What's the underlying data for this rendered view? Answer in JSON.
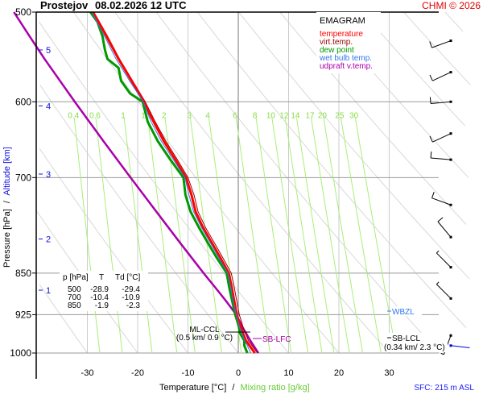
{
  "header": {
    "station": "Prostejov",
    "datetime": "08.02.2026 12 UTC",
    "copyright": "CHMI © 2026"
  },
  "chart_data": {
    "type": "line",
    "title": "EMAGRAM",
    "xlabel": "Temperature [°C]",
    "xlabel_sep": "/",
    "xlabel2": "Mixing ratio [g/kg]",
    "ylabel": "Pressure [hPa]",
    "ylabel_sep": "/",
    "ylabel2": "Altitude [km]",
    "xlim": [
      -38,
      42
    ],
    "ylim": [
      1000,
      500
    ],
    "x_ticks": [
      -30,
      -20,
      -10,
      0,
      10,
      20,
      30
    ],
    "pressure_ticks": [
      500,
      600,
      700,
      850,
      925,
      1000
    ],
    "altitude_ticks": [
      {
        "km": 1,
        "p": 880
      },
      {
        "km": 2,
        "p": 793
      },
      {
        "km": 3,
        "p": 695
      },
      {
        "km": 4,
        "p": 605
      },
      {
        "km": 5,
        "p": 540
      }
    ],
    "mixing_ratio_labels": [
      "0.4",
      "0.6",
      "1",
      "1.5",
      "2",
      "3",
      "4",
      "6",
      "8",
      "10",
      "12",
      "14",
      "17",
      "20",
      "25",
      "30"
    ],
    "mixing_ratio_values": [
      0.4,
      0.6,
      1,
      1.5,
      2,
      3,
      4,
      6,
      8,
      10,
      12,
      14,
      17,
      20,
      25,
      30
    ],
    "legend": [
      {
        "name": "temperature",
        "color": "#ff0000"
      },
      {
        "name": "virt.temp.",
        "color": "#990000"
      },
      {
        "name": "dew point",
        "color": "#009900"
      },
      {
        "name": "wet bulb temp.",
        "color": "#3377ee"
      },
      {
        "name": "udpraft v.temp.",
        "color": "#aa00aa"
      }
    ],
    "series": [
      {
        "name": "temperature",
        "points": [
          [
            1000,
            3.3
          ],
          [
            975,
            1.5
          ],
          [
            950,
            0.5
          ],
          [
            925,
            -0.3
          ],
          [
            900,
            -0.8
          ],
          [
            875,
            -1.3
          ],
          [
            850,
            -1.9
          ],
          [
            825,
            -3.5
          ],
          [
            800,
            -5.2
          ],
          [
            775,
            -7.0
          ],
          [
            750,
            -8.5
          ],
          [
            725,
            -9.3
          ],
          [
            700,
            -10.4
          ],
          [
            675,
            -12.5
          ],
          [
            650,
            -14.8
          ],
          [
            625,
            -16.8
          ],
          [
            600,
            -18.8
          ],
          [
            575,
            -21.2
          ],
          [
            550,
            -23.8
          ],
          [
            525,
            -26.2
          ],
          [
            500,
            -28.9
          ]
        ]
      },
      {
        "name": "virt.temp.",
        "points": [
          [
            1000,
            3.8
          ],
          [
            975,
            2.0
          ],
          [
            950,
            1.0
          ],
          [
            925,
            0.2
          ],
          [
            900,
            -0.3
          ],
          [
            875,
            -0.8
          ],
          [
            850,
            -1.4
          ],
          [
            825,
            -3.0
          ],
          [
            800,
            -4.7
          ],
          [
            775,
            -6.5
          ],
          [
            750,
            -8.0
          ],
          [
            725,
            -8.8
          ],
          [
            700,
            -10.0
          ],
          [
            675,
            -12.1
          ],
          [
            650,
            -14.4
          ],
          [
            625,
            -16.5
          ],
          [
            600,
            -18.5
          ],
          [
            575,
            -21.0
          ],
          [
            550,
            -23.6
          ],
          [
            525,
            -26.0
          ],
          [
            500,
            -28.7
          ]
        ]
      },
      {
        "name": "dew point",
        "points": [
          [
            1000,
            1.8
          ],
          [
            985,
            1.2
          ],
          [
            975,
            1.2
          ],
          [
            960,
            0.3
          ],
          [
            950,
            0.2
          ],
          [
            925,
            -0.6
          ],
          [
            900,
            -1.2
          ],
          [
            875,
            -1.8
          ],
          [
            850,
            -2.3
          ],
          [
            825,
            -4.2
          ],
          [
            800,
            -6.0
          ],
          [
            775,
            -7.8
          ],
          [
            750,
            -9.5
          ],
          [
            725,
            -10.5
          ],
          [
            700,
            -10.9
          ],
          [
            675,
            -13.5
          ],
          [
            650,
            -16.0
          ],
          [
            625,
            -18.0
          ],
          [
            600,
            -19.0
          ],
          [
            590,
            -21.5
          ],
          [
            575,
            -23.3
          ],
          [
            560,
            -23.8
          ],
          [
            550,
            -26.0
          ],
          [
            540,
            -26.5
          ],
          [
            525,
            -27.0
          ],
          [
            510,
            -28.0
          ],
          [
            500,
            -29.4
          ]
        ]
      },
      {
        "name": "wet bulb temp.",
        "points": [
          [
            1000,
            2.5
          ],
          [
            975,
            1.3
          ],
          [
            950,
            0.3
          ],
          [
            925,
            -0.4
          ],
          [
            900,
            -1.0
          ],
          [
            875,
            -1.5
          ],
          [
            850,
            -2.1
          ],
          [
            825,
            -3.8
          ],
          [
            800,
            -5.5
          ],
          [
            775,
            -7.3
          ],
          [
            750,
            -8.9
          ],
          [
            725,
            -9.8
          ],
          [
            700,
            -10.6
          ],
          [
            675,
            -12.9
          ],
          [
            650,
            -15.3
          ],
          [
            625,
            -17.3
          ],
          [
            600,
            -18.9
          ],
          [
            575,
            -21.6
          ],
          [
            550,
            -24.3
          ],
          [
            525,
            -26.6
          ],
          [
            500,
            -29.1
          ]
        ]
      },
      {
        "name": "udpraft v.temp.",
        "points": [
          [
            1000,
            4.0
          ],
          [
            975,
            2.4
          ],
          [
            950,
            0.9
          ],
          [
            925,
            -0.4
          ],
          [
            900,
            -2.4
          ],
          [
            875,
            -4.6
          ],
          [
            850,
            -6.9
          ],
          [
            800,
            -11.5
          ],
          [
            750,
            -16.3
          ],
          [
            700,
            -21.4
          ],
          [
            650,
            -26.8
          ],
          [
            600,
            -32.5
          ],
          [
            550,
            -38.5
          ],
          [
            525,
            -41.5
          ],
          [
            500,
            -44.6
          ]
        ]
      }
    ],
    "table": {
      "headers": [
        "p [hPa]",
        "T",
        "Td [°C]"
      ],
      "rows": [
        [
          "500",
          "-28.9",
          "-29.4"
        ],
        [
          "700",
          "-10.4",
          "-10.9"
        ],
        [
          "850",
          "-1.9",
          "-2.3"
        ]
      ]
    },
    "annotations": {
      "ml_ccl": {
        "label": "ML-CCL",
        "detail": "(0.5 km/ 0.9 °C)",
        "p": 945
      },
      "sb_lfc": {
        "label": "SB-LFC",
        "p": 975
      },
      "wbzl": {
        "label": "WBZL",
        "p": 905
      },
      "sb_lcl": {
        "label": "SB-LCL",
        "detail": "(0.34 km/ 2.3 °C)",
        "p": 960
      }
    },
    "wind_barbs": [
      {
        "p": 530,
        "dir": 250,
        "speed_kt": 10
      },
      {
        "p": 565,
        "dir": 245,
        "speed_kt": 10
      },
      {
        "p": 600,
        "dir": 265,
        "speed_kt": 10
      },
      {
        "p": 640,
        "dir": 245,
        "speed_kt": 10
      },
      {
        "p": 675,
        "dir": 275,
        "speed_kt": 10
      },
      {
        "p": 740,
        "dir": 290,
        "speed_kt": 10
      },
      {
        "p": 790,
        "dir": 320,
        "speed_kt": 10
      },
      {
        "p": 840,
        "dir": 315,
        "speed_kt": 5
      },
      {
        "p": 895,
        "dir": 315,
        "speed_kt": 5
      },
      {
        "p": 965,
        "dir": 200,
        "speed_kt": 5
      }
    ],
    "surface_wind": {
      "dir": 290,
      "color": "#0000dd"
    },
    "footer": "SFC: 215 m ASL"
  }
}
